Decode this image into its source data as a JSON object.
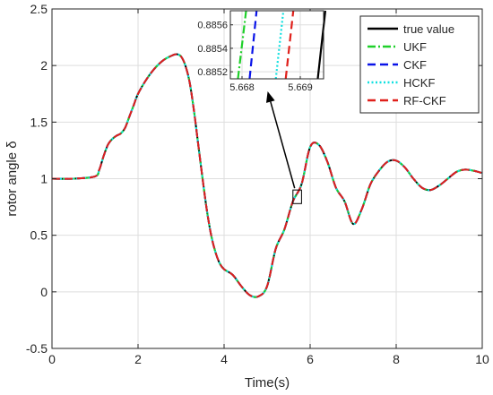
{
  "chart_data": {
    "type": "line",
    "xlabel": "Time(s)",
    "ylabel": "rotor angle δ",
    "xlim": [
      0,
      10
    ],
    "ylim": [
      -0.5,
      2.5
    ],
    "xticks": [
      0,
      2,
      4,
      6,
      8,
      10
    ],
    "xtick_labels": [
      "0",
      "2",
      "4",
      "6",
      "8",
      "10"
    ],
    "yticks": [
      -0.5,
      0,
      0.5,
      1,
      1.5,
      2,
      2.5
    ],
    "ytick_labels": [
      "-0.5",
      "0",
      "0.5",
      "1",
      "1.5",
      "2",
      "2.5"
    ],
    "grid": true,
    "legend_position": "top-right",
    "x": [
      0,
      0.5,
      1,
      1.1,
      1.2,
      1.3,
      1.4,
      1.5,
      1.6,
      1.7,
      1.8,
      1.9,
      2,
      2.2,
      2.4,
      2.6,
      2.8,
      2.9,
      3,
      3.1,
      3.2,
      3.3,
      3.4,
      3.5,
      3.6,
      3.7,
      3.8,
      3.9,
      4,
      4.2,
      4.4,
      4.6,
      4.8,
      5,
      5.2,
      5.4,
      5.6,
      5.8,
      6,
      6.2,
      6.4,
      6.6,
      6.8,
      7,
      7.2,
      7.4,
      7.6,
      7.8,
      8,
      8.2,
      8.4,
      8.6,
      8.8,
      9,
      9.2,
      9.4,
      9.6,
      9.8,
      10
    ],
    "series": [
      {
        "name": "true value",
        "color": "#000000",
        "dash": "solid",
        "values": [
          1.0,
          1.0,
          1.02,
          1.08,
          1.2,
          1.3,
          1.35,
          1.38,
          1.4,
          1.45,
          1.55,
          1.65,
          1.75,
          1.88,
          1.98,
          2.05,
          2.09,
          2.1,
          2.08,
          2.0,
          1.85,
          1.6,
          1.3,
          1.0,
          0.72,
          0.5,
          0.35,
          0.25,
          0.2,
          0.15,
          0.05,
          -0.03,
          -0.04,
          0.05,
          0.38,
          0.55,
          0.8,
          0.95,
          1.28,
          1.3,
          1.15,
          0.92,
          0.8,
          0.6,
          0.73,
          0.95,
          1.07,
          1.15,
          1.16,
          1.1,
          1.0,
          0.92,
          0.9,
          0.94,
          1.0,
          1.06,
          1.08,
          1.07,
          1.05
        ]
      },
      {
        "name": "UKF",
        "color": "#1fd02a",
        "dash": "dashdot",
        "values": [
          1.0,
          1.0,
          1.02,
          1.08,
          1.2,
          1.3,
          1.35,
          1.38,
          1.4,
          1.45,
          1.55,
          1.65,
          1.75,
          1.88,
          1.98,
          2.05,
          2.09,
          2.1,
          2.08,
          2.0,
          1.85,
          1.6,
          1.3,
          1.0,
          0.72,
          0.5,
          0.35,
          0.25,
          0.2,
          0.15,
          0.05,
          -0.03,
          -0.04,
          0.05,
          0.38,
          0.55,
          0.8,
          0.95,
          1.28,
          1.3,
          1.15,
          0.92,
          0.8,
          0.6,
          0.73,
          0.95,
          1.07,
          1.15,
          1.16,
          1.1,
          1.0,
          0.92,
          0.9,
          0.94,
          1.0,
          1.06,
          1.08,
          1.07,
          1.05
        ]
      },
      {
        "name": "CKF",
        "color": "#0a14e8",
        "dash": "dashed",
        "values": [
          1.0,
          1.0,
          1.02,
          1.08,
          1.2,
          1.3,
          1.35,
          1.38,
          1.4,
          1.45,
          1.55,
          1.65,
          1.75,
          1.88,
          1.98,
          2.05,
          2.09,
          2.1,
          2.08,
          2.0,
          1.85,
          1.6,
          1.3,
          1.0,
          0.72,
          0.5,
          0.35,
          0.25,
          0.2,
          0.15,
          0.05,
          -0.03,
          -0.04,
          0.05,
          0.38,
          0.55,
          0.8,
          0.95,
          1.28,
          1.3,
          1.15,
          0.92,
          0.8,
          0.6,
          0.73,
          0.95,
          1.07,
          1.15,
          1.16,
          1.1,
          1.0,
          0.92,
          0.9,
          0.94,
          1.0,
          1.06,
          1.08,
          1.07,
          1.05
        ]
      },
      {
        "name": "HCKF",
        "color": "#11e0e0",
        "dash": "dotted",
        "values": [
          1.0,
          1.0,
          1.02,
          1.08,
          1.2,
          1.3,
          1.35,
          1.38,
          1.4,
          1.45,
          1.55,
          1.65,
          1.75,
          1.88,
          1.98,
          2.05,
          2.09,
          2.1,
          2.08,
          2.0,
          1.85,
          1.6,
          1.3,
          1.0,
          0.72,
          0.5,
          0.35,
          0.25,
          0.2,
          0.15,
          0.05,
          -0.03,
          -0.04,
          0.05,
          0.38,
          0.55,
          0.8,
          0.95,
          1.28,
          1.3,
          1.15,
          0.92,
          0.8,
          0.6,
          0.73,
          0.95,
          1.07,
          1.15,
          1.16,
          1.1,
          1.0,
          0.92,
          0.9,
          0.94,
          1.0,
          1.06,
          1.08,
          1.07,
          1.05
        ]
      },
      {
        "name": "RF-CKF",
        "color": "#e0201b",
        "dash": "dashed",
        "values": [
          1.0,
          1.0,
          1.02,
          1.08,
          1.2,
          1.3,
          1.35,
          1.38,
          1.4,
          1.45,
          1.55,
          1.65,
          1.75,
          1.88,
          1.98,
          2.05,
          2.09,
          2.1,
          2.08,
          2.0,
          1.85,
          1.6,
          1.3,
          1.0,
          0.72,
          0.5,
          0.35,
          0.25,
          0.2,
          0.15,
          0.05,
          -0.03,
          -0.04,
          0.05,
          0.38,
          0.55,
          0.8,
          0.95,
          1.28,
          1.3,
          1.15,
          0.92,
          0.8,
          0.6,
          0.73,
          0.95,
          1.07,
          1.15,
          1.16,
          1.1,
          1.0,
          0.92,
          0.9,
          0.94,
          1.0,
          1.06,
          1.08,
          1.07,
          1.05
        ]
      }
    ],
    "annotation": {
      "zoom_box_x": [
        5.6,
        5.8
      ],
      "zoom_box_y": [
        0.78,
        0.9
      ],
      "inset": {
        "xlim": [
          5.6678,
          5.6694
        ],
        "ylim": [
          0.88514,
          0.88572
        ],
        "xticks": [
          5.668,
          5.669
        ],
        "xtick_labels": [
          "5.668",
          "5.669"
        ],
        "yticks": [
          0.8852,
          0.8854,
          0.8856
        ],
        "ytick_labels": [
          "0.8852",
          "0.8854",
          "0.8856"
        ],
        "line_x_at_bottom": {
          "true value": 5.6693,
          "UKF": 5.66793,
          "CKF": 5.66813,
          "HCKF": 5.66858,
          "RF-CKF": 5.66875
        },
        "line_x_at_top": {
          "true value": 5.66943,
          "UKF": 5.66807,
          "CKF": 5.66825,
          "HCKF": 5.66871,
          "RF-CKF": 5.66888
        }
      }
    }
  }
}
